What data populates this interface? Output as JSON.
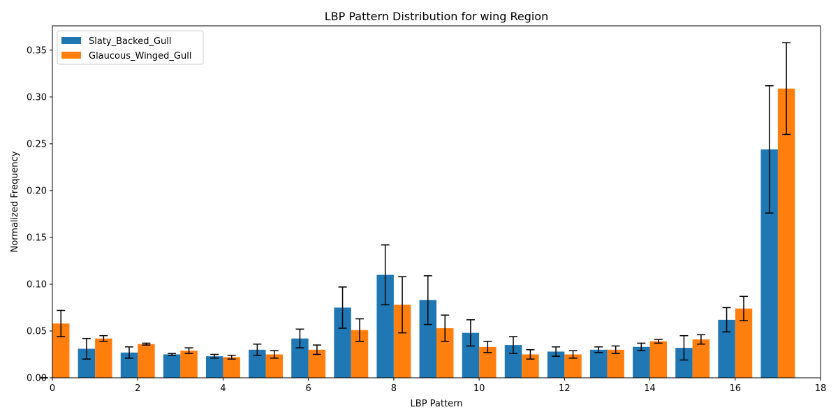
{
  "chart_data": {
    "type": "bar",
    "title": "LBP Pattern Distribution for wing Region",
    "xlabel": "LBP Pattern",
    "ylabel": "Normalized Frequency",
    "x": [
      0,
      1,
      2,
      3,
      4,
      5,
      6,
      7,
      8,
      9,
      10,
      11,
      12,
      13,
      14,
      15,
      16,
      17
    ],
    "xlim": [
      0,
      18
    ],
    "ylim": [
      0,
      0.376
    ],
    "x_ticks": [
      0,
      2,
      4,
      6,
      8,
      10,
      12,
      14,
      16,
      18
    ],
    "x_tick_labels": [
      "0",
      "2",
      "4",
      "6",
      "8",
      "10",
      "12",
      "14",
      "16",
      "18"
    ],
    "y_ticks": [
      0.0,
      0.05,
      0.1,
      0.15,
      0.2,
      0.25,
      0.3,
      0.35
    ],
    "y_tick_labels": [
      "0.00",
      "0.05",
      "0.10",
      "0.15",
      "0.20",
      "0.25",
      "0.30",
      "0.35"
    ],
    "grid": false,
    "legend_position": "top-left",
    "series": [
      {
        "name": "Slaty_Backed_Gull",
        "color": "#1f77b4",
        "values": [
          0.0,
          0.031,
          0.027,
          0.025,
          0.023,
          0.03,
          0.042,
          0.075,
          0.11,
          0.083,
          0.048,
          0.035,
          0.028,
          0.03,
          0.033,
          0.032,
          0.062,
          0.244
        ],
        "errors": [
          0.0,
          0.011,
          0.006,
          0.001,
          0.002,
          0.006,
          0.01,
          0.022,
          0.032,
          0.026,
          0.014,
          0.009,
          0.005,
          0.003,
          0.004,
          0.013,
          0.013,
          0.068
        ]
      },
      {
        "name": "Glaucous_Winged_Gull",
        "color": "#ff7f0e",
        "values": [
          0.058,
          0.042,
          0.036,
          0.029,
          0.022,
          0.025,
          0.03,
          0.051,
          0.078,
          0.053,
          0.033,
          0.025,
          0.025,
          0.03,
          0.039,
          0.041,
          0.074,
          0.309
        ],
        "errors": [
          0.014,
          0.003,
          0.001,
          0.003,
          0.002,
          0.004,
          0.005,
          0.012,
          0.03,
          0.014,
          0.006,
          0.005,
          0.004,
          0.004,
          0.002,
          0.005,
          0.013,
          0.049
        ]
      }
    ]
  }
}
